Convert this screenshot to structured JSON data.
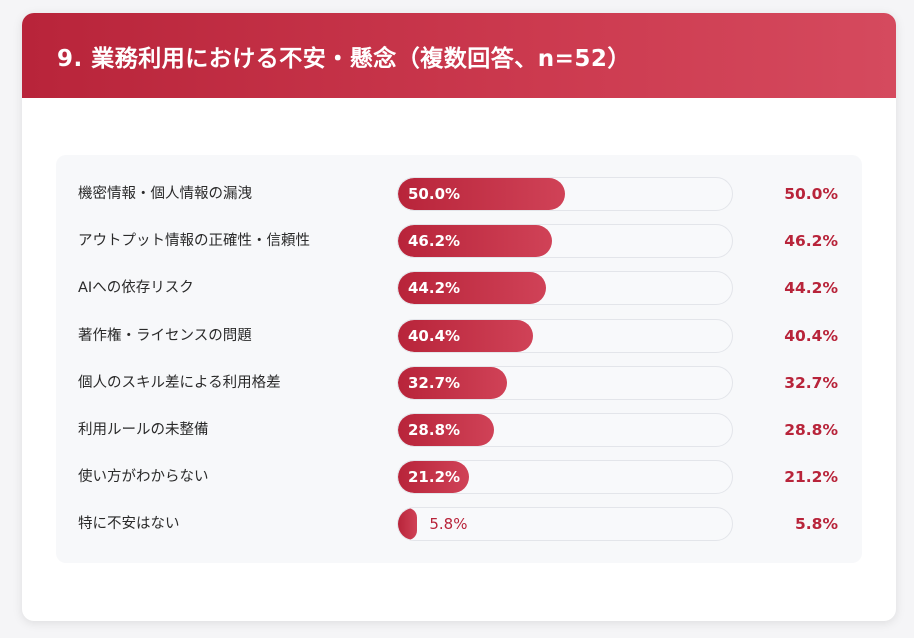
{
  "title": "9. 業務利用における不安・懸念（複数回答、n=52）",
  "colors": {
    "accent": "#b8243a",
    "accent_light": "#d04257",
    "track": "#f8f9fb",
    "panel": "#f7f8fa"
  },
  "chart_data": {
    "type": "bar",
    "orientation": "horizontal",
    "title": "9. 業務利用における不安・懸念（複数回答、n=52）",
    "categories": [
      "機密情報・個人情報の漏洩",
      "アウトプット情報の正確性・信頼性",
      "AIへの依存リスク",
      "著作権・ライセンスの問題",
      "個人のスキル差による利用格差",
      "利用ルールの未整備",
      "使い方がわからない",
      "特に不安はない"
    ],
    "values": [
      50.0,
      46.2,
      44.2,
      40.4,
      32.7,
      28.8,
      21.2,
      5.8
    ],
    "value_labels": [
      "50.0%",
      "46.2%",
      "44.2%",
      "40.4%",
      "32.7%",
      "28.8%",
      "21.2%",
      "5.8%"
    ],
    "unit": "%",
    "xlim": [
      0,
      100
    ]
  }
}
